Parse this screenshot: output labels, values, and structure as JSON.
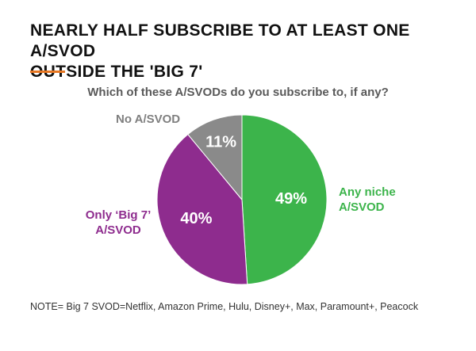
{
  "header": {
    "title_line1": "NEARLY HALF SUBSCRIBE TO AT LEAST ONE A/SVOD",
    "title_line2": "OUTSIDE THE 'BIG 7'",
    "accent_color": "#e87722"
  },
  "chart_data": {
    "type": "pie",
    "title": "Which of these A/SVODs do you subscribe to, if any?",
    "slices": [
      {
        "label": "Any niche A/SVOD",
        "label_line1": "Any niche",
        "label_line2": "A/SVOD",
        "value": 49,
        "display": "49%",
        "color": "#3cb44b"
      },
      {
        "label": "Only ‘Big 7’ A/SVOD",
        "label_line1": "Only ‘Big 7’",
        "label_line2": "A/SVOD",
        "value": 40,
        "display": "40%",
        "color": "#8e2c8e"
      },
      {
        "label": "No A/SVOD",
        "label_line1": "No A/SVOD",
        "label_line2": "",
        "value": 11,
        "display": "11%",
        "color": "#8a8a8a"
      }
    ]
  },
  "footer": {
    "note": "NOTE= Big 7 SVOD=Netflix, Amazon Prime, Hulu, Disney+, Max, Paramount+, Peacock"
  }
}
